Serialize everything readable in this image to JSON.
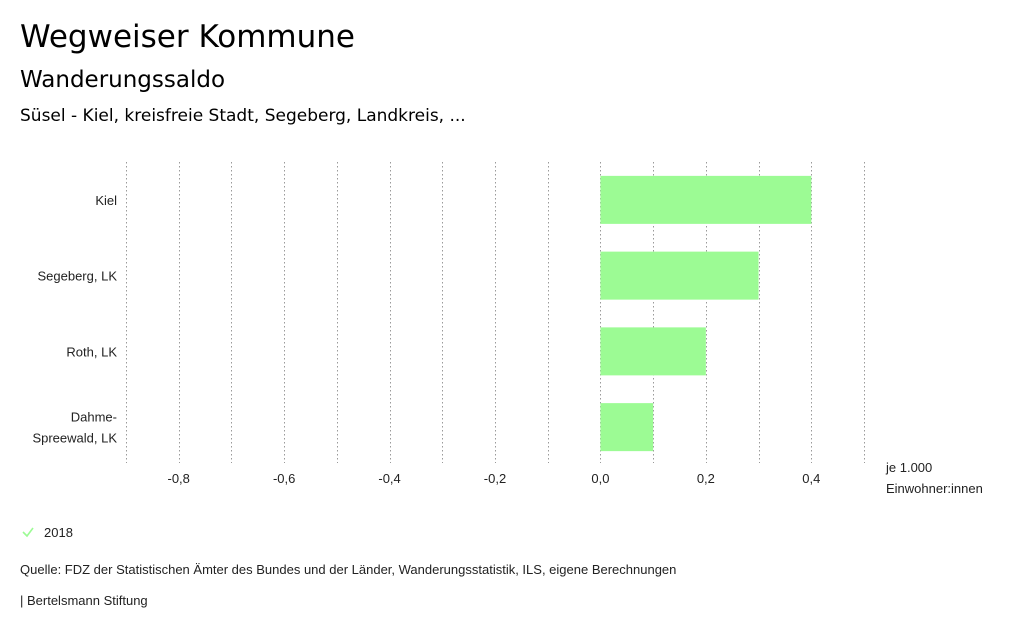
{
  "header": {
    "title": "Wegweiser Kommune",
    "subtitle": "Wanderungssaldo",
    "context": "Süsel - Kiel, kreisfreie Stadt, Segeberg, Landkreis, ..."
  },
  "chart_data": {
    "type": "bar",
    "orientation": "horizontal",
    "categories": [
      "Kiel",
      "Segeberg, LK",
      "Roth, LK",
      "Dahme-Spreewald, LK"
    ],
    "category_lines": [
      [
        "Kiel"
      ],
      [
        "Segeberg, LK"
      ],
      [
        "Roth, LK"
      ],
      [
        "Dahme-",
        "Spreewald, LK"
      ]
    ],
    "series": [
      {
        "name": "2018",
        "values": [
          0.4,
          0.3,
          0.2,
          0.1
        ],
        "color": "#9cfb94"
      }
    ],
    "xlim": [
      -0.9,
      0.5
    ],
    "major_ticks": [
      -0.8,
      -0.6,
      -0.4,
      -0.2,
      0.0,
      0.2,
      0.4
    ],
    "tick_labels": [
      "-0,8",
      "-0,6",
      "-0,4",
      "-0,2",
      "0,0",
      "0,2",
      "0,4"
    ],
    "grid_step": 0.1,
    "grid": true,
    "unit_label": [
      "je 1.000",
      "Einwohner:innen"
    ],
    "legend_position": "bottom-left"
  },
  "legend": {
    "label": "2018",
    "icon": "check-icon",
    "color": "#9cfb94"
  },
  "footer": {
    "source": "Quelle: FDZ der Statistischen Ämter des Bundes und der Länder, Wanderungsstatistik, ILS, eigene Berechnungen",
    "publisher": "| Bertelsmann Stiftung"
  }
}
